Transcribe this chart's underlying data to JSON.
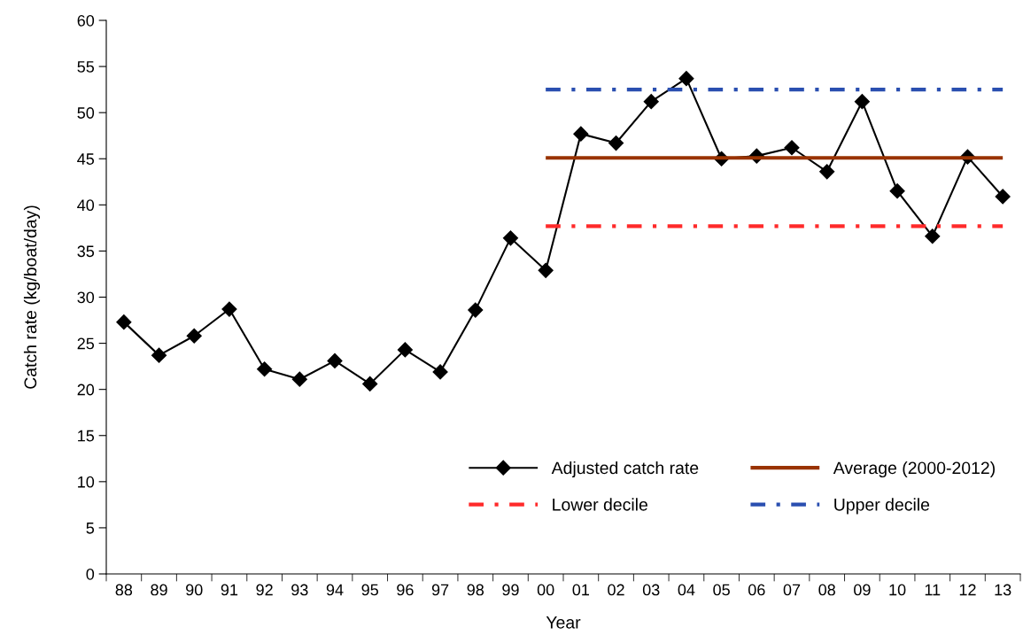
{
  "chart_data": {
    "type": "line",
    "xlabel": "Year",
    "ylabel": "Catch rate (kg/boat/day)",
    "categories": [
      "88",
      "89",
      "90",
      "91",
      "92",
      "93",
      "94",
      "95",
      "96",
      "97",
      "98",
      "99",
      "00",
      "01",
      "02",
      "03",
      "04",
      "05",
      "06",
      "07",
      "08",
      "09",
      "10",
      "11",
      "12",
      "13"
    ],
    "series": [
      {
        "name": "Adjusted catch rate",
        "color": "#000000",
        "marker": "diamond",
        "line_style": "solid",
        "values": [
          27.3,
          23.7,
          25.8,
          28.7,
          22.2,
          21.1,
          23.1,
          20.6,
          24.3,
          21.9,
          28.6,
          36.4,
          32.9,
          47.7,
          46.7,
          51.2,
          53.7,
          45.0,
          45.3,
          46.2,
          43.6,
          51.2,
          41.5,
          36.6,
          45.2,
          40.9
        ]
      },
      {
        "name": "Average (2000-2012)",
        "color": "#993300",
        "marker": "none",
        "line_style": "solid",
        "values": [
          null,
          null,
          null,
          null,
          null,
          null,
          null,
          null,
          null,
          null,
          null,
          null,
          45.1,
          45.1,
          45.1,
          45.1,
          45.1,
          45.1,
          45.1,
          45.1,
          45.1,
          45.1,
          45.1,
          45.1,
          45.1,
          45.1
        ]
      },
      {
        "name": "Lower decile",
        "color": "#ff2a2a",
        "marker": "none",
        "line_style": "dashdot",
        "values": [
          null,
          null,
          null,
          null,
          null,
          null,
          null,
          null,
          null,
          null,
          null,
          null,
          37.7,
          37.7,
          37.7,
          37.7,
          37.7,
          37.7,
          37.7,
          37.7,
          37.7,
          37.7,
          37.7,
          37.7,
          37.7,
          37.7
        ]
      },
      {
        "name": "Upper decile",
        "color": "#2a4fb0",
        "marker": "none",
        "line_style": "dashdot",
        "values": [
          null,
          null,
          null,
          null,
          null,
          null,
          null,
          null,
          null,
          null,
          null,
          null,
          52.5,
          52.5,
          52.5,
          52.5,
          52.5,
          52.5,
          52.5,
          52.5,
          52.5,
          52.5,
          52.5,
          52.5,
          52.5,
          52.5
        ]
      }
    ],
    "ylim": [
      0,
      60
    ],
    "yticks": [
      0,
      5,
      10,
      15,
      20,
      25,
      30,
      35,
      40,
      45,
      50,
      55,
      60
    ],
    "grid": false,
    "legend": "bottom right"
  }
}
